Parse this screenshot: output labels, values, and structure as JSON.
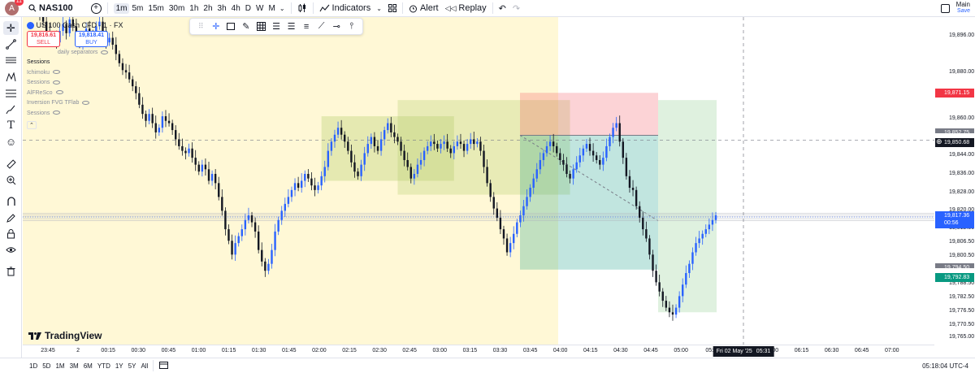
{
  "header": {
    "avatar_letter": "A",
    "notification_count": "11",
    "symbol": "NAS100",
    "intervals": [
      "1m",
      "5m",
      "15m",
      "30m",
      "1h",
      "2h",
      "3h",
      "4h",
      "D",
      "W",
      "M"
    ],
    "active_interval": "1m",
    "indicators_label": "Indicators",
    "alert_label": "Alert",
    "replay_label": "Replay",
    "layout_name": "Main",
    "save_label": "Save"
  },
  "legend": {
    "title": "US 100 Cash CFD · 1 · FX",
    "sell_price": "19,816.61",
    "sell_label": "SELL",
    "buy_price": "19,818.41",
    "buy_label": "BUY",
    "indicators": [
      "Sessions",
      "Ichimoku",
      "Sessions",
      "AlFReSco",
      "Inversion FVG TFlab",
      "Sessions"
    ],
    "partial_indicator": "daily separators"
  },
  "price_scale": {
    "labels": [
      "19,896.00",
      "19,880.00",
      "19,860.00",
      "19,844.00",
      "19,836.00",
      "19,828.00",
      "19,820.00",
      "19,812.50",
      "19,806.50",
      "19,800.50",
      "19,788.50",
      "19,782.50",
      "19,776.50",
      "19,770.50",
      "19,765.00"
    ],
    "tags": {
      "stop": "19,871.15",
      "entry_top": "19,852.75",
      "crosshair": "19,850.68",
      "current": "19,817.36",
      "countdown": "00:56",
      "target_top": "19,794.50",
      "target": "19,792.83"
    },
    "colors": {
      "stop": "#f23645",
      "crosshair": "#131722",
      "current": "#2962ff",
      "target": "#089981"
    }
  },
  "time_axis": {
    "labels": [
      "23:45",
      "2",
      "00:15",
      "00:30",
      "00:45",
      "01:00",
      "01:15",
      "01:30",
      "01:45",
      "02:00",
      "02:15",
      "02:30",
      "02:45",
      "03:00",
      "03:15",
      "03:30",
      "03:45",
      "04:00",
      "04:15",
      "04:30",
      "04:45",
      "05:00",
      "05:1",
      "45",
      "06:00",
      "06:15",
      "06:30",
      "06:45",
      "07:00"
    ],
    "cursor_date": "Fri 02 May '25",
    "cursor_time": "05:31"
  },
  "footer": {
    "ranges": [
      "1D",
      "5D",
      "1M",
      "3M",
      "6M",
      "YTD",
      "1Y",
      "5Y",
      "All"
    ],
    "clock": "05:18:04 UTC-4"
  },
  "branding": {
    "logo_text": "TradingView"
  },
  "chart_data": {
    "type": "candlestick",
    "symbol": "NAS100",
    "interval": "1m",
    "ylim": [
      19762,
      19904
    ],
    "last_price": 19817.36,
    "crosshair_price": 19850.68,
    "short_position": {
      "entry": 19852.75,
      "stop": 19871.15,
      "target": 19794.5
    },
    "series_close": [
      19904,
      19902,
      19898,
      19895,
      19896,
      19893,
      19898,
      19901,
      19897,
      19903,
      19900,
      19896,
      19892,
      19894,
      19899,
      19897,
      19895,
      19900,
      19902,
      19898,
      19893,
      19895,
      19892,
      19888,
      19884,
      19881,
      19880,
      19877,
      19874,
      19871,
      19866,
      19862,
      19859,
      19862,
      19858,
      19854,
      19856,
      19861,
      19859,
      19858,
      19855,
      19851,
      19848,
      19846,
      19845,
      19847,
      19843,
      19840,
      19837,
      19840,
      19838,
      19833,
      19836,
      19832,
      19826,
      19820,
      19812,
      19807,
      19801,
      19806,
      19809,
      19812,
      19816,
      19818,
      19815,
      19811,
      19803,
      19798,
      19794,
      19797,
      19803,
      19811,
      19816,
      19820,
      19823,
      19826,
      19829,
      19832,
      19830,
      19833,
      19836,
      19834,
      19831,
      19829,
      19831,
      19835,
      19839,
      19846,
      19850,
      19853,
      19856,
      19853,
      19850,
      19846,
      19841,
      19837,
      19835,
      19840,
      19845,
      19849,
      19852,
      19848,
      19846,
      19851,
      19855,
      19858,
      19854,
      19852,
      19850,
      19846,
      19842,
      19839,
      19834,
      19836,
      19840,
      19842,
      19846,
      19848,
      19850,
      19849,
      19847,
      19849,
      19850,
      19847,
      19845,
      19848,
      19850,
      19849,
      19846,
      19849,
      19851,
      19849,
      19850,
      19846,
      19839,
      19832,
      19826,
      19821,
      19817,
      19812,
      19808,
      19802,
      19806,
      19810,
      19815,
      19818,
      19822,
      19826,
      19830,
      19834,
      19838,
      19842,
      19845,
      19848,
      19850,
      19848,
      19845,
      19842,
      19840,
      19836,
      19834,
      19838,
      19841,
      19844,
      19847,
      19849,
      19846,
      19844,
      19842,
      19840,
      19843,
      19848,
      19852,
      19856,
      19858,
      19850,
      19843,
      19835,
      19830,
      19829,
      19822,
      19817,
      19812,
      19808,
      19801,
      19794,
      19789,
      19785,
      19781,
      19778,
      19776,
      19775,
      19778,
      19783,
      19788,
      19793,
      19797,
      19802,
      19806,
      19808,
      19810,
      19812,
      19814,
      19816,
      19818
    ]
  }
}
